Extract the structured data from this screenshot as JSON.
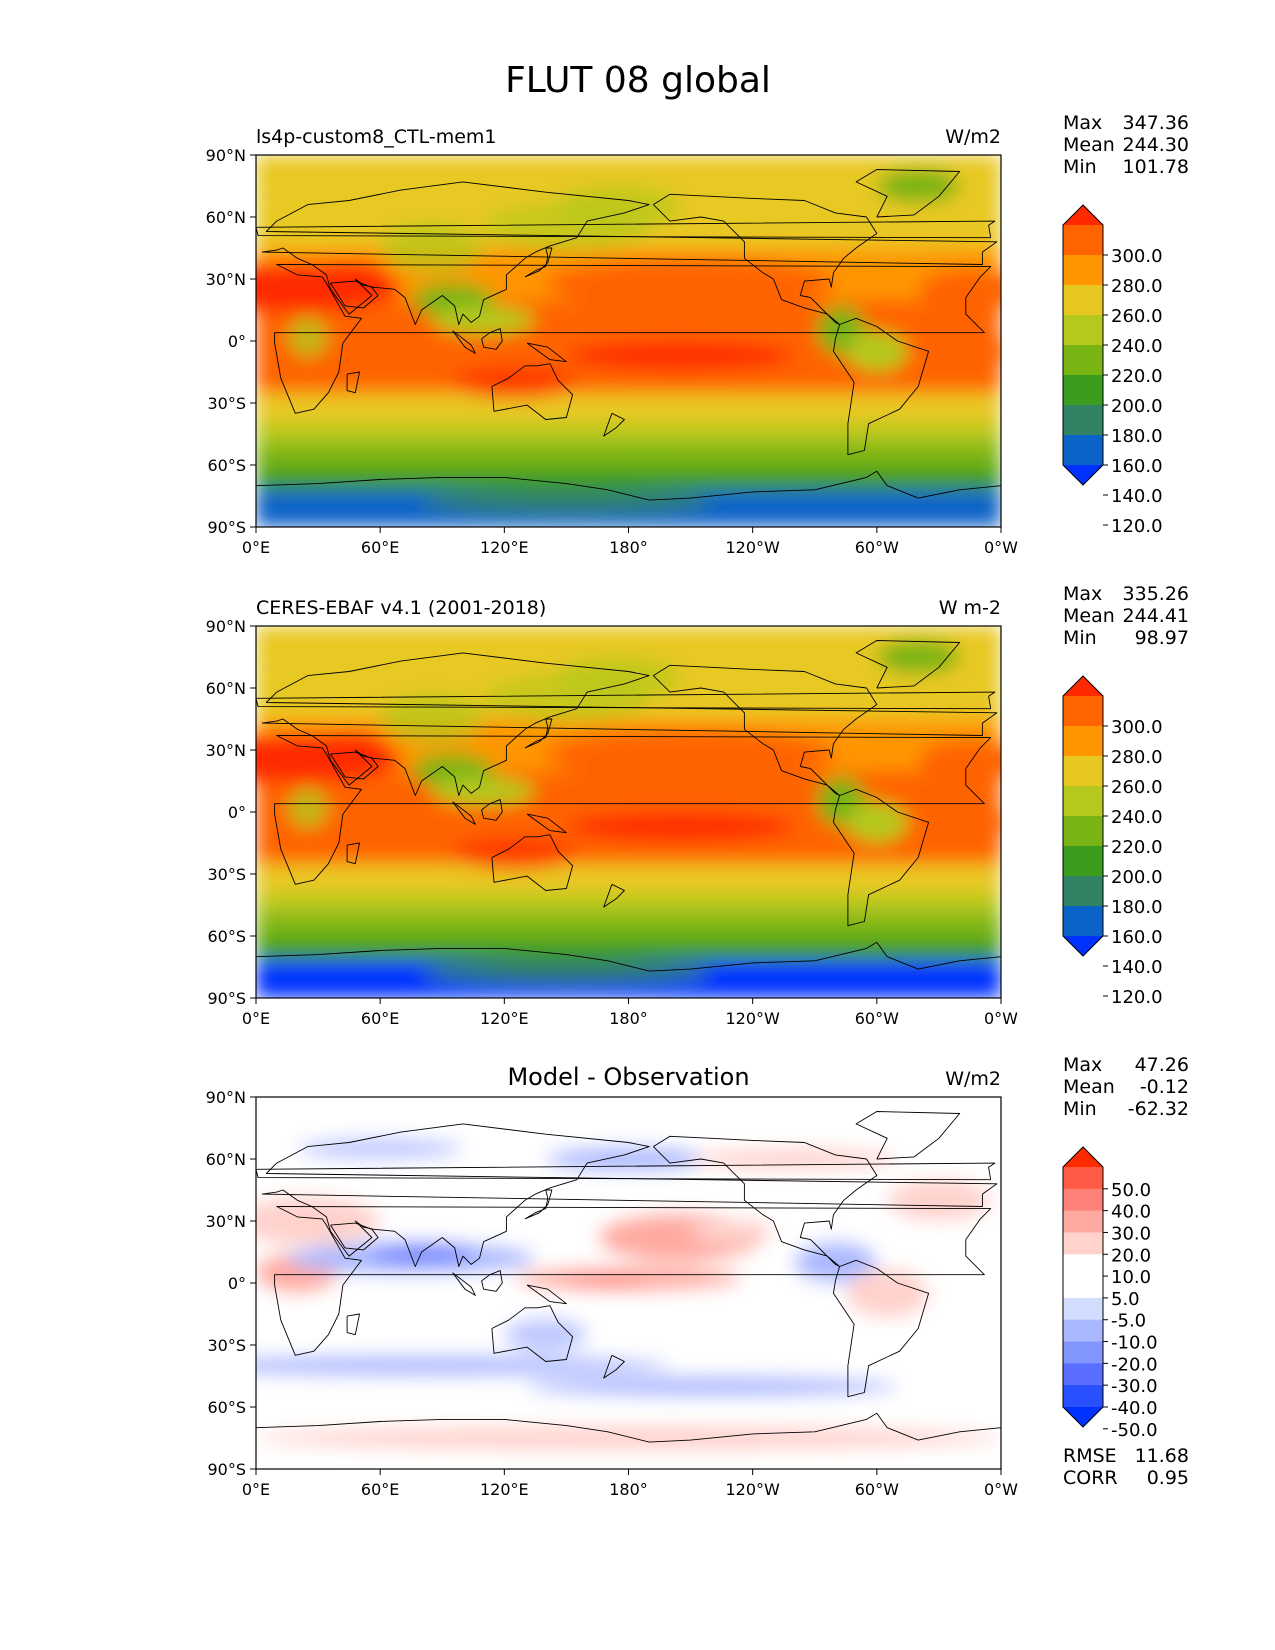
{
  "figure": {
    "title": "FLUT 08 global",
    "panels": [
      {
        "left_label": "ls4p-custom8_CTL-mem1",
        "center_label": "",
        "units": "W/m2",
        "stats": [
          {
            "label": "Max",
            "value": "347.36"
          },
          {
            "label": "Mean",
            "value": "244.30"
          },
          {
            "label": "Min",
            "value": "101.78"
          }
        ],
        "colorbar": {
          "ticks": [
            "300.0",
            "280.0",
            "260.0",
            "240.0",
            "220.0",
            "200.0",
            "180.0",
            "160.0",
            "140.0",
            "120.0"
          ],
          "colors": [
            "#ff2a00",
            "#ff6400",
            "#ff9600",
            "#e8c820",
            "#b4c81e",
            "#78b414",
            "#3c9c1e",
            "#328264",
            "#0a64c8",
            "#0032ff"
          ]
        },
        "field": "absolute"
      },
      {
        "left_label": "CERES-EBAF v4.1 (2001-2018)",
        "center_label": "",
        "units": "W m-2",
        "stats": [
          {
            "label": "Max",
            "value": "335.26"
          },
          {
            "label": "Mean",
            "value": "244.41"
          },
          {
            "label": "Min",
            "value": "98.97"
          }
        ],
        "colorbar": {
          "ticks": [
            "300.0",
            "280.0",
            "260.0",
            "240.0",
            "220.0",
            "200.0",
            "180.0",
            "160.0",
            "140.0",
            "120.0"
          ],
          "colors": [
            "#ff2a00",
            "#ff6400",
            "#ff9600",
            "#e8c820",
            "#b4c81e",
            "#78b414",
            "#3c9c1e",
            "#328264",
            "#0a64c8",
            "#0032ff"
          ]
        },
        "field": "absolute"
      },
      {
        "left_label": "",
        "center_label": "Model - Observation",
        "units": "W/m2",
        "stats": [
          {
            "label": "Max",
            "value": "47.26"
          },
          {
            "label": "Mean",
            "value": "-0.12"
          },
          {
            "label": "Min",
            "value": "-62.32"
          }
        ],
        "colorbar": {
          "ticks": [
            "50.0",
            "40.0",
            "30.0",
            "20.0",
            "10.0",
            "5.0",
            "-5.0",
            "-10.0",
            "-20.0",
            "-30.0",
            "-40.0",
            "-50.0"
          ],
          "colors": [
            "#ff2a00",
            "#ff5a46",
            "#ff8278",
            "#ffaaa0",
            "#ffd2cc",
            "#ffffff",
            "#ffffff",
            "#d2dcff",
            "#aab9ff",
            "#8296ff",
            "#5a6eff",
            "#2850ff",
            "#0032ff"
          ]
        },
        "extra_stats": [
          {
            "label": "RMSE",
            "value": "11.68"
          },
          {
            "label": "CORR",
            "value": "0.95"
          }
        ],
        "field": "difference"
      }
    ],
    "x_ticks": [
      "0°E",
      "60°E",
      "120°E",
      "180°",
      "120°W",
      "60°W",
      "0°W"
    ],
    "y_ticks": [
      "90°N",
      "60°N",
      "30°N",
      "0°",
      "30°S",
      "60°S",
      "90°S"
    ]
  }
}
